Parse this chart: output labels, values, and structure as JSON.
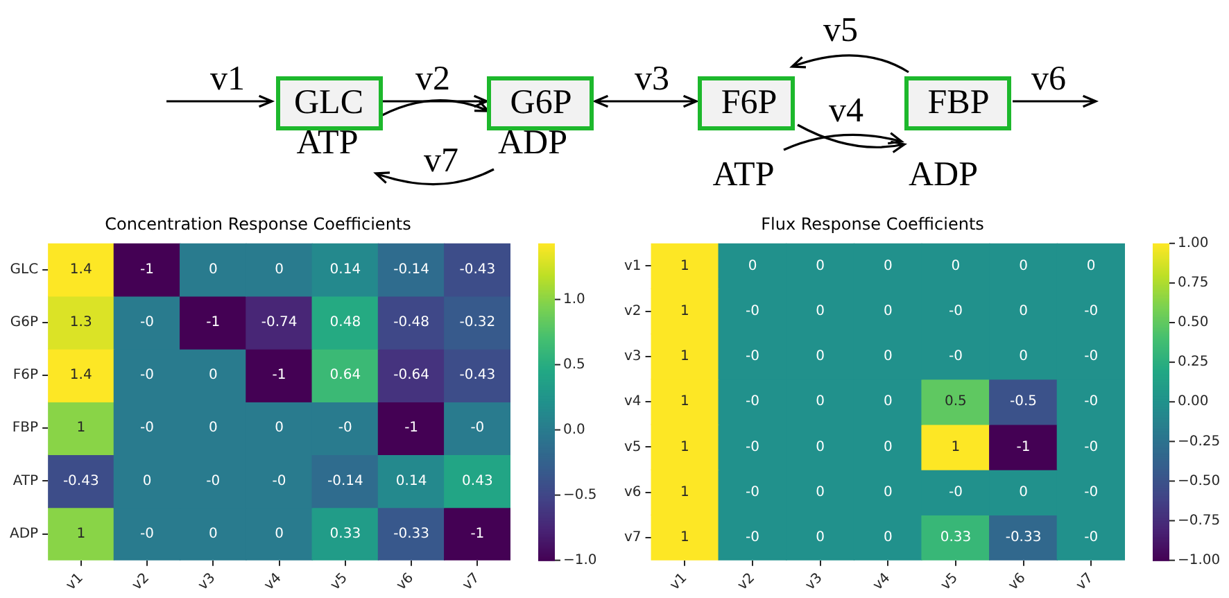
{
  "chart_data": [
    {
      "type": "other",
      "annotations": [
        "v1",
        "GLC",
        "v2",
        "G6P",
        "v3",
        "F6P",
        "v5",
        "FBP",
        "v6",
        "ATP",
        "ADP",
        "v7",
        "v4",
        "ATP",
        "ADP"
      ]
    },
    {
      "type": "heatmap",
      "title": "Concentration Response Coefficients",
      "categories": [
        "v1",
        "v2",
        "v3",
        "v4",
        "v5",
        "v6",
        "v7"
      ],
      "y_categories": [
        "GLC",
        "G6P",
        "F6P",
        "FBP",
        "ATP",
        "ADP"
      ],
      "cells": [
        [
          1.43,
          -1,
          0,
          0,
          0.14,
          -0.14,
          -0.43
        ],
        [
          1.3,
          0,
          -1,
          -0.74,
          0.48,
          -0.48,
          -0.32
        ],
        [
          1.43,
          0,
          0,
          -1,
          0.64,
          -0.64,
          -0.43
        ],
        [
          1,
          0,
          0,
          0,
          0,
          -1,
          0
        ],
        [
          -0.43,
          0,
          0,
          0,
          -0.14,
          0.14,
          0.43
        ],
        [
          1,
          0,
          0,
          0,
          0.33,
          -0.33,
          -1
        ]
      ],
      "cell_labels": [
        [
          "1.4",
          "-1",
          "0",
          "0",
          "0.14",
          "-0.14",
          "-0.43"
        ],
        [
          "1.3",
          "-0",
          "-1",
          "-0.74",
          "0.48",
          "-0.48",
          "-0.32"
        ],
        [
          "1.4",
          "-0",
          "0",
          "-1",
          "0.64",
          "-0.64",
          "-0.43"
        ],
        [
          "1",
          "-0",
          "0",
          "0",
          "-0",
          "-1",
          "-0"
        ],
        [
          "-0.43",
          "0",
          "-0",
          "-0",
          "-0.14",
          "0.14",
          "0.43"
        ],
        [
          "1",
          "-0",
          "0",
          "0",
          "0.33",
          "-0.33",
          "-1"
        ]
      ],
      "clim": [
        -1,
        1.43
      ],
      "cticks": [
        {
          "value": -1,
          "label": "−1.0"
        },
        {
          "value": -0.5,
          "label": "−0.5"
        },
        {
          "value": 0,
          "label": "0.0"
        },
        {
          "value": 0.5,
          "label": "0.5"
        },
        {
          "value": 1,
          "label": "1.0"
        }
      ]
    },
    {
      "type": "heatmap",
      "title": "Flux Response Coefficients",
      "categories": [
        "v1",
        "v2",
        "v3",
        "v4",
        "v5",
        "v6",
        "v7"
      ],
      "y_categories": [
        "v1",
        "v2",
        "v3",
        "v4",
        "v5",
        "v6",
        "v7"
      ],
      "cells": [
        [
          1,
          0,
          0,
          0,
          0,
          0,
          0
        ],
        [
          1,
          0,
          0,
          0,
          0,
          0,
          0
        ],
        [
          1,
          0,
          0,
          0,
          0,
          0,
          0
        ],
        [
          1,
          0,
          0,
          0,
          0.5,
          -0.5,
          0
        ],
        [
          1,
          0,
          0,
          0,
          1,
          -1,
          0
        ],
        [
          1,
          0,
          0,
          0,
          0,
          0,
          0
        ],
        [
          1,
          0,
          0,
          0,
          0.33,
          -0.33,
          0
        ]
      ],
      "cell_labels": [
        [
          "1",
          "0",
          "0",
          "0",
          "0",
          "0",
          "0"
        ],
        [
          "1",
          "-0",
          "0",
          "0",
          "-0",
          "0",
          "-0"
        ],
        [
          "1",
          "-0",
          "0",
          "0",
          "-0",
          "0",
          "-0"
        ],
        [
          "1",
          "-0",
          "0",
          "0",
          "0.5",
          "-0.5",
          "-0"
        ],
        [
          "1",
          "-0",
          "0",
          "0",
          "1",
          "-1",
          "-0"
        ],
        [
          "1",
          "-0",
          "0",
          "0",
          "-0",
          "0",
          "-0"
        ],
        [
          "1",
          "-0",
          "0",
          "0",
          "0.33",
          "-0.33",
          "-0"
        ]
      ],
      "clim": [
        -1,
        1
      ],
      "cticks": [
        {
          "value": -1,
          "label": "−1.00"
        },
        {
          "value": -0.75,
          "label": "−0.75"
        },
        {
          "value": -0.5,
          "label": "−0.50"
        },
        {
          "value": -0.25,
          "label": "−0.25"
        },
        {
          "value": 0,
          "label": "0.00"
        },
        {
          "value": 0.25,
          "label": "0.25"
        },
        {
          "value": 0.5,
          "label": "0.50"
        },
        {
          "value": 0.75,
          "label": "0.75"
        },
        {
          "value": 1,
          "label": "1.00"
        }
      ]
    }
  ]
}
